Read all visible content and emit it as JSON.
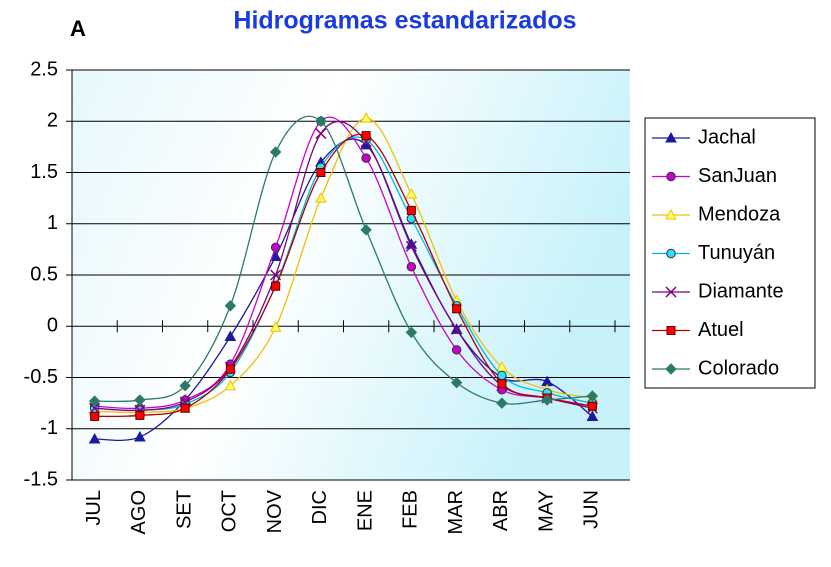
{
  "chart_data": {
    "type": "line",
    "title": "Hidrogramas estandarizados",
    "annotations": [
      "A"
    ],
    "categories": [
      "JUL",
      "AGO",
      "SET",
      "OCT",
      "NOV",
      "DIC",
      "ENE",
      "FEB",
      "MAR",
      "ABR",
      "MAY",
      "JUN"
    ],
    "ylim": [
      -1.5,
      2.5
    ],
    "yticks": [
      -1.5,
      -1,
      -0.5,
      0,
      0.5,
      1,
      1.5,
      2,
      2.5
    ],
    "grid": true,
    "smooth": true,
    "legend": "right",
    "series": [
      {
        "name": "Jachal",
        "color": "#1a1aa0",
        "marker": "triangle",
        "fill": "#1a1aa0",
        "values": [
          -1.1,
          -1.08,
          -0.72,
          -0.1,
          0.68,
          1.6,
          1.77,
          0.8,
          -0.03,
          -0.5,
          -0.54,
          -0.88
        ]
      },
      {
        "name": "SanJuan",
        "color": "#cc00cc",
        "marker": "circle",
        "fill": "#cc00cc",
        "values": [
          -0.78,
          -0.8,
          -0.72,
          -0.37,
          0.77,
          2.0,
          1.64,
          0.58,
          -0.23,
          -0.62,
          -0.7,
          -0.78
        ]
      },
      {
        "name": "Mendoza",
        "color": "#f0c000",
        "marker": "triangle",
        "fill": "#ffff66",
        "values": [
          -0.83,
          -0.84,
          -0.8,
          -0.58,
          -0.01,
          1.25,
          2.03,
          1.29,
          0.25,
          -0.4,
          -0.62,
          -0.7
        ]
      },
      {
        "name": "Tunuyán",
        "color": "#00b8e0",
        "marker": "circle",
        "fill": "#33ddff",
        "values": [
          -0.8,
          -0.82,
          -0.76,
          -0.45,
          0.4,
          1.55,
          1.82,
          1.05,
          0.2,
          -0.48,
          -0.65,
          -0.75
        ]
      },
      {
        "name": "Diamante",
        "color": "#800080",
        "marker": "x",
        "fill": "#800080",
        "values": [
          -0.8,
          -0.82,
          -0.74,
          -0.4,
          0.5,
          1.88,
          1.8,
          0.78,
          -0.03,
          -0.58,
          -0.7,
          -0.8
        ]
      },
      {
        "name": "Atuel",
        "color": "#b00000",
        "marker": "square",
        "fill": "#ff0000",
        "values": [
          -0.88,
          -0.87,
          -0.8,
          -0.42,
          0.39,
          1.5,
          1.86,
          1.13,
          0.17,
          -0.56,
          -0.7,
          -0.78
        ]
      },
      {
        "name": "Colorado",
        "color": "#2a7a6a",
        "marker": "diamond",
        "fill": "#2a7a6a",
        "values": [
          -0.73,
          -0.72,
          -0.58,
          0.2,
          1.7,
          2.0,
          0.94,
          -0.06,
          -0.55,
          -0.75,
          -0.72,
          -0.68
        ]
      }
    ]
  }
}
